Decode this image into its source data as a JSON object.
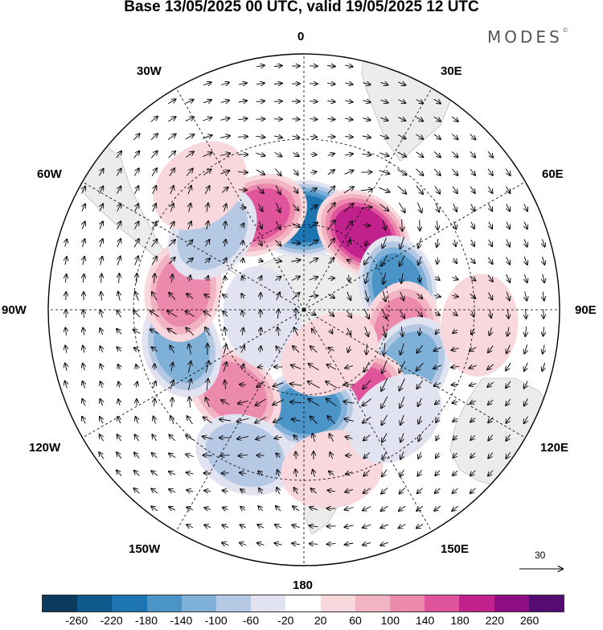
{
  "title": "Base 13/05/2025 00 UTC, valid 19/05/2025 12 UTC",
  "brand": "MODES",
  "brand_mark": "©",
  "longitude_labels": {
    "top": "0",
    "bottom": "180",
    "left": "90W",
    "right": "90E",
    "w30": "30W",
    "e30": "30E",
    "w60": "60W",
    "e60": "60E",
    "w120": "120W",
    "e120": "120E",
    "w150": "150W",
    "e150": "150E"
  },
  "reference_vector": {
    "value": "30"
  },
  "colorbar": {
    "ticks": [
      "-260",
      "-220",
      "-180",
      "-140",
      "-100",
      "-60",
      "-20",
      "20",
      "60",
      "100",
      "140",
      "180",
      "220",
      "260"
    ],
    "colors": [
      "#0c3a5e",
      "#0f5a8c",
      "#1c74b0",
      "#4a94c8",
      "#7fb1d8",
      "#b5c9e4",
      "#e2e3f0",
      "#ffffff",
      "#f8d8dc",
      "#f2b3c3",
      "#ec8aae",
      "#df549b",
      "#c0218c",
      "#8e0e82",
      "#540c72"
    ]
  },
  "anomalies": [
    {
      "sign": "neg",
      "value": -200,
      "lon": 0,
      "lat": -58
    },
    {
      "sign": "pos",
      "value": 160,
      "lon": -26,
      "lat": -53
    },
    {
      "sign": "pos",
      "value": 200,
      "lon": 38,
      "lat": -56
    },
    {
      "sign": "neg",
      "value": -160,
      "lon": 76,
      "lat": -56
    },
    {
      "sign": "pos",
      "value": 140,
      "lon": 103,
      "lat": -55
    },
    {
      "sign": "neg",
      "value": -140,
      "lon": 118,
      "lat": -48
    },
    {
      "sign": "pos",
      "value": 160,
      "lon": 148,
      "lat": -55
    },
    {
      "sign": "neg",
      "value": -180,
      "lon": 178,
      "lat": -55
    },
    {
      "sign": "pos",
      "value": 140,
      "lon": -140,
      "lat": -52
    },
    {
      "sign": "neg",
      "value": -140,
      "lon": -107,
      "lat": -45
    },
    {
      "sign": "pos",
      "value": 120,
      "lon": -81,
      "lat": -47
    },
    {
      "sign": "neg",
      "value": -80,
      "lon": -50,
      "lat": -48
    },
    {
      "sign": "neg",
      "value": -80,
      "lon": -158,
      "lat": -35
    },
    {
      "sign": "pos",
      "value": 60,
      "lon": -40,
      "lat": -33
    },
    {
      "sign": "pos",
      "value": 60,
      "lon": 170,
      "lat": -33
    },
    {
      "sign": "neg",
      "value": -60,
      "lon": 140,
      "lat": -40
    },
    {
      "sign": "pos",
      "value": 60,
      "lon": 95,
      "lat": -28
    },
    {
      "sign": "neg",
      "value": -60,
      "lon": -100,
      "lat": -75
    },
    {
      "sign": "pos",
      "value": 60,
      "lon": 150,
      "lat": -72
    }
  ]
}
